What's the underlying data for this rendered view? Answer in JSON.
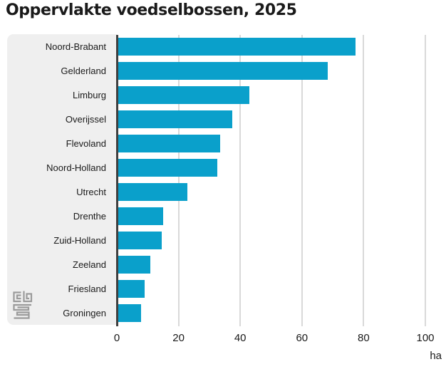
{
  "title": "Oppervlakte voedselbossen, 2025",
  "chart_data": {
    "type": "bar",
    "orientation": "horizontal",
    "title": "Oppervlakte voedselbossen, 2025",
    "categories": [
      "Noord-Brabant",
      "Gelderland",
      "Limburg",
      "Overijssel",
      "Flevoland",
      "Noord-Holland",
      "Utrecht",
      "Drenthe",
      "Zuid-Holland",
      "Zeeland",
      "Friesland",
      "Groningen"
    ],
    "values": [
      77,
      68,
      42.5,
      37,
      33,
      32,
      22.5,
      14.5,
      14,
      10.5,
      8.5,
      7.5
    ],
    "x_ticks": [
      0,
      20,
      40,
      60,
      80,
      100
    ],
    "xlim": [
      0,
      100
    ],
    "xlabel_unit": "ha",
    "grid": true,
    "legend": false,
    "bar_color": "#0aa0cb"
  },
  "colors": {
    "bar": "#0aa0cb",
    "label_panel": "#efefef",
    "axis_line": "#3f3f3f",
    "gridline": "#d9d9d9",
    "text": "#1a1a1a",
    "logo_gray": "#9b9b9b"
  },
  "footer": {
    "logo": "cbs-logo"
  }
}
